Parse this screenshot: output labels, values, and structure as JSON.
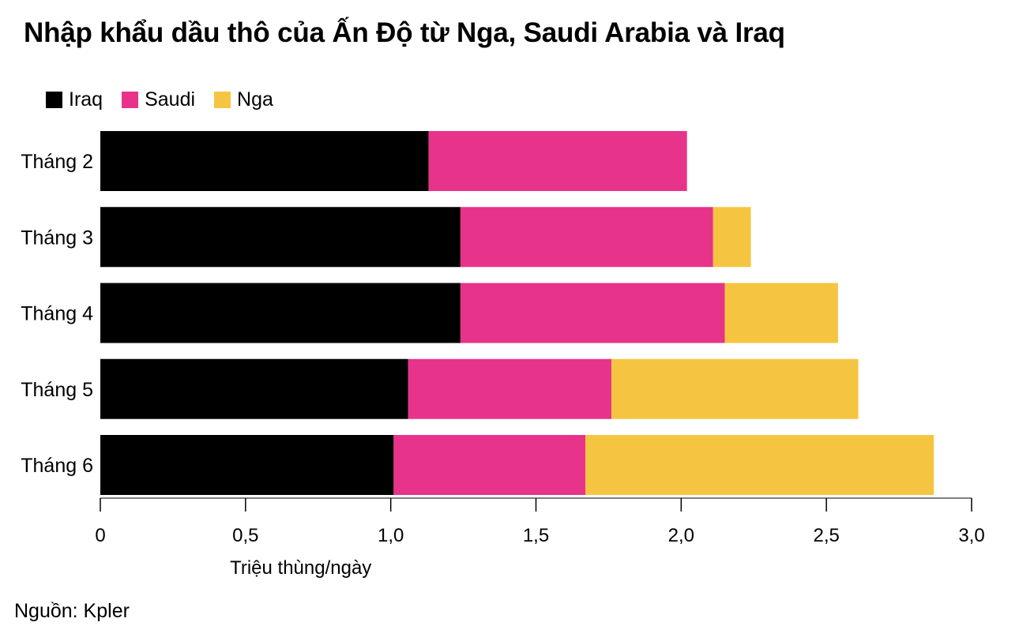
{
  "title": "Nhập khẩu dầu thô của Ấn Độ từ Nga, Saudi Arabia và Iraq",
  "source": "Nguồn: Kpler",
  "chart_data": {
    "type": "bar",
    "orientation": "horizontal",
    "stacked": true,
    "categories": [
      "Tháng 2",
      "Tháng 3",
      "Tháng 4",
      "Tháng 5",
      "Tháng 6"
    ],
    "series": [
      {
        "name": "Iraq",
        "color": "#000000",
        "values": [
          1.13,
          1.24,
          1.24,
          1.06,
          1.01
        ]
      },
      {
        "name": "Saudi",
        "color": "#E8338A",
        "values": [
          0.89,
          0.87,
          0.91,
          0.7,
          0.66
        ]
      },
      {
        "name": "Nga",
        "color": "#F5C542",
        "values": [
          0.0,
          0.13,
          0.39,
          0.85,
          1.2
        ]
      }
    ],
    "xlabel": "Triệu thùng/ngày",
    "ylabel": "",
    "xlim": [
      0,
      3.0
    ],
    "xticks": [
      0,
      0.5,
      1.0,
      1.5,
      2.0,
      2.5,
      3.0
    ],
    "xtick_labels": [
      "0",
      "0,5",
      "1,0",
      "1,5",
      "2,0",
      "2,5",
      "3,0"
    ],
    "legend_position": "top-left",
    "grid": false
  }
}
